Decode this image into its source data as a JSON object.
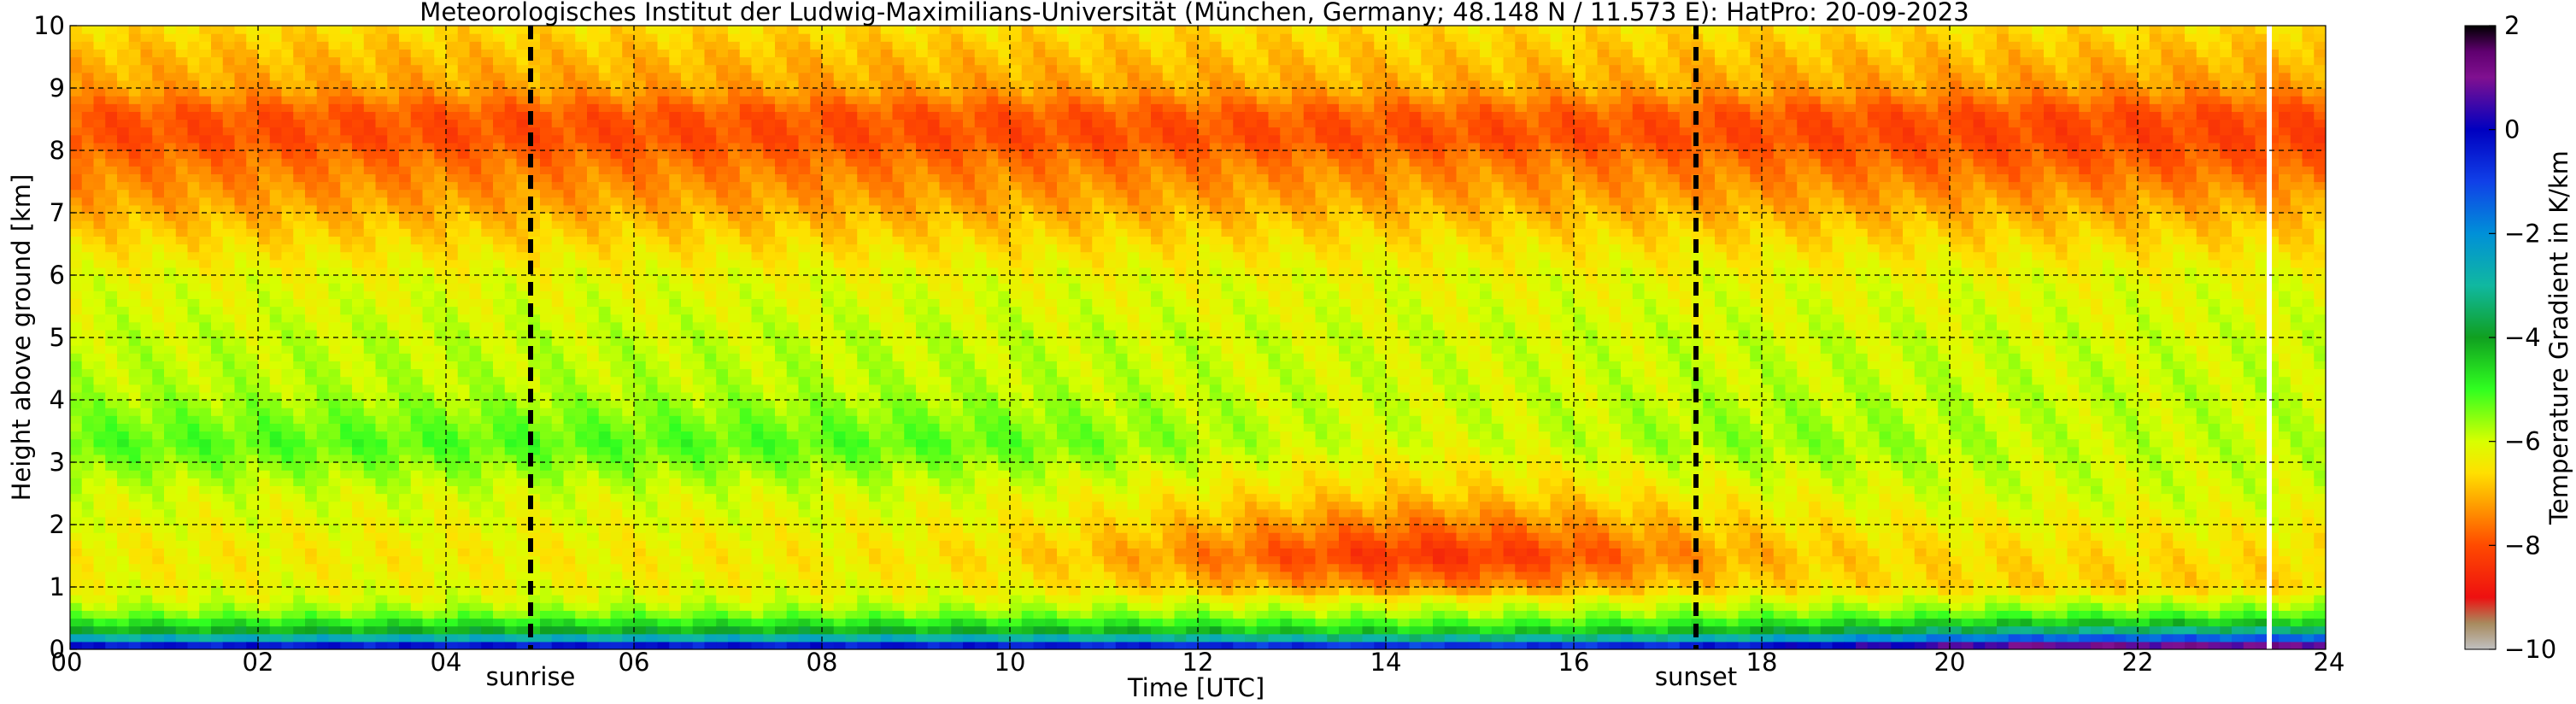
{
  "chart_data": {
    "type": "heatmap",
    "title": "Meteorologisches Institut der Ludwig-Maximilians-Universität (München, Germany; 48.148 N / 11.573 E):    HatPro: 20-09-2023",
    "xlabel": "Time [UTC]",
    "ylabel": "Height above ground [km]",
    "colorbar_label": "Temperature Gradient in K/km",
    "xlim": [
      0,
      24
    ],
    "ylim": [
      0,
      10
    ],
    "x_ticks": [
      "00",
      "02",
      "04",
      "06",
      "08",
      "10",
      "12",
      "14",
      "16",
      "18",
      "20",
      "22",
      "24"
    ],
    "y_ticks": [
      "0",
      "1",
      "2",
      "3",
      "4",
      "5",
      "6",
      "7",
      "8",
      "9",
      "10"
    ],
    "colorbar_range": [
      -10,
      2
    ],
    "colorbar_ticks": [
      "2",
      "0",
      "−2",
      "−4",
      "−6",
      "−8",
      "−10"
    ],
    "grid": true,
    "markers": [
      {
        "label": "sunrise",
        "x": 4.9
      },
      {
        "label": "sunset",
        "x": 17.3
      }
    ],
    "data_gap_x": 23.4,
    "colorscale": [
      {
        "v": -10,
        "color": "#c0c0c0"
      },
      {
        "v": -9.5,
        "color": "#a88a5e"
      },
      {
        "v": -9,
        "color": "#ee1010"
      },
      {
        "v": -8,
        "color": "#ff4a00"
      },
      {
        "v": -7.2,
        "color": "#ffa000"
      },
      {
        "v": -6.6,
        "color": "#ffe000"
      },
      {
        "v": -6,
        "color": "#d8ff00"
      },
      {
        "v": -5,
        "color": "#30ff20"
      },
      {
        "v": -4,
        "color": "#10a020"
      },
      {
        "v": -3,
        "color": "#10b8a0"
      },
      {
        "v": -2,
        "color": "#0090d8"
      },
      {
        "v": -1,
        "color": "#1040e8"
      },
      {
        "v": 0,
        "color": "#0000c0"
      },
      {
        "v": 1,
        "color": "#801090"
      },
      {
        "v": 1.5,
        "color": "#600070"
      },
      {
        "v": 2,
        "color": "#000000"
      }
    ],
    "profile_by_height": {
      "height_km": [
        0,
        0.12,
        0.25,
        0.4,
        0.6,
        0.8,
        1.0,
        1.5,
        2.5,
        3.3,
        3.6,
        4.2,
        5.0,
        6.0,
        6.6,
        7.2,
        7.8,
        8.2,
        8.6,
        9.0,
        9.6,
        10.0
      ],
      "gradient_early": [
        0.8,
        -1.5,
        -3.8,
        -4.6,
        -5.6,
        -6.0,
        -6.2,
        -6.4,
        -6.0,
        -5.2,
        -5.4,
        -5.8,
        -5.9,
        -6.2,
        -6.7,
        -7.2,
        -7.6,
        -8.0,
        -7.9,
        -7.2,
        -6.9,
        -6.6
      ],
      "gradient_midday": [
        0.4,
        -2.0,
        -4.2,
        -5.0,
        -5.8,
        -6.3,
        -7.4,
        -8.4,
        -6.8,
        -6.1,
        -6.0,
        -6.0,
        -6.0,
        -6.2,
        -6.6,
        -7.1,
        -7.5,
        -8.0,
        -7.8,
        -7.1,
        -6.8,
        -6.6
      ],
      "gradient_late": [
        1.9,
        0.0,
        -2.6,
        -4.2,
        -5.4,
        -6.0,
        -6.7,
        -6.6,
        -6.0,
        -5.9,
        -5.9,
        -5.9,
        -6.0,
        -6.2,
        -6.7,
        -7.2,
        -7.8,
        -8.1,
        -8.0,
        -7.3,
        -6.9,
        -6.6
      ]
    }
  }
}
